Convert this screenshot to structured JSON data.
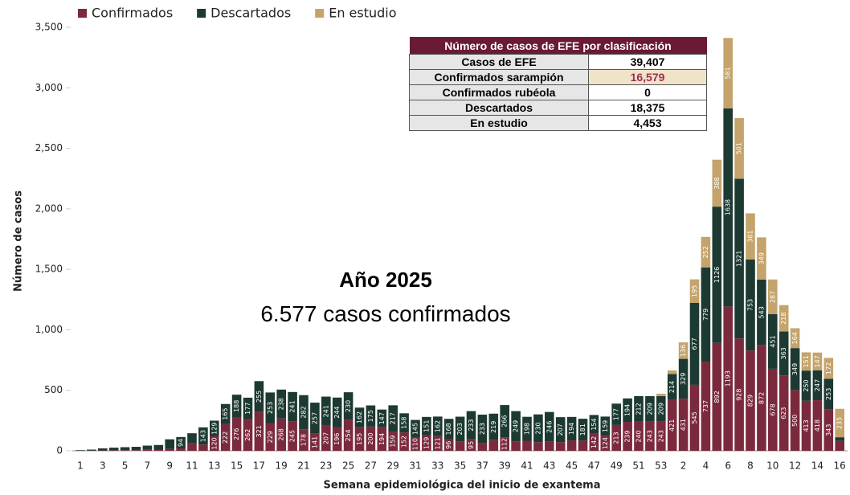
{
  "chart_data": {
    "type": "stacked_bar",
    "xlabel": "Semana epidemiológica del inicio de exantema",
    "ylabel": "Número de casos",
    "ylim": [
      0,
      3500
    ],
    "yticks": [
      0,
      500,
      {
        "value": 1000,
        "label": "1,000"
      },
      {
        "value": 1500,
        "label": "1,500"
      },
      {
        "value": 2000,
        "label": "2,000"
      },
      {
        "value": 2500,
        "label": "2,500"
      },
      {
        "value": 3000,
        "label": "3,000"
      },
      {
        "value": 3500,
        "label": "3,500"
      }
    ],
    "annotations": [
      "Año 2025",
      "6.577 casos confirmados"
    ],
    "categories": [
      "1",
      null,
      "3",
      null,
      "5",
      null,
      "7",
      null,
      "9",
      null,
      "11",
      null,
      "13",
      null,
      "15",
      null,
      "17",
      null,
      "19",
      null,
      "21",
      null,
      "23",
      null,
      "25",
      null,
      "27",
      null,
      "29",
      null,
      "31",
      null,
      "33",
      null,
      "35",
      null,
      "37",
      null,
      "39",
      null,
      "41",
      null,
      "43",
      null,
      "45",
      null,
      "47",
      null,
      "49",
      null,
      "51",
      null,
      "53",
      null,
      "2",
      null,
      "4",
      null,
      "6",
      null,
      "8",
      null,
      "10",
      null,
      "12",
      null,
      "14",
      null,
      "16"
    ],
    "series": [
      {
        "name": "Confirmados",
        "color": "#7b2a3e",
        "values": [
          0,
          2,
          3,
          4,
          5,
          5,
          8,
          10,
          17,
          20,
          61,
          51,
          120,
          222,
          276,
          262,
          321,
          229,
          268,
          245,
          178,
          141,
          207,
          196,
          254,
          195,
          200,
          194,
          159,
          152,
          110,
          129,
          121,
          96,
          79,
          95,
          66,
          88,
          112,
          79,
          83,
          71,
          75,
          71,
          86,
          84,
          142,
          124,
          213,
          239,
          240,
          243,
          243,
          421,
          431,
          545,
          737,
          892,
          1193,
          928,
          829,
          872,
          678,
          623,
          500,
          413,
          418,
          343,
          82
        ]
      },
      {
        "name": "Descartados",
        "color": "#1d3a32",
        "values": [
          5,
          8,
          17,
          22,
          25,
          28,
          35,
          38,
          78,
          94,
          84,
          143,
          129,
          165,
          188,
          177,
          255,
          253,
          238,
          241,
          282,
          257,
          241,
          244,
          230,
          162,
          175,
          147,
          217,
          158,
          145,
          151,
          162,
          168,
          203,
          233,
          233,
          219,
          266,
          249,
          198,
          230,
          246,
          207,
          194,
          181,
          154,
          159,
          177,
          194,
          212,
          209,
          209,
          214,
          329,
          677,
          779,
          1126,
          1638,
          1321,
          753,
          543,
          451,
          363,
          349,
          250,
          247,
          253,
          30
        ]
      },
      {
        "name": "En estudio",
        "color": "#c4a46c",
        "values": [
          0,
          0,
          0,
          0,
          0,
          0,
          0,
          0,
          0,
          0,
          0,
          0,
          0,
          0,
          0,
          0,
          0,
          0,
          0,
          0,
          0,
          0,
          0,
          0,
          0,
          0,
          0,
          0,
          0,
          0,
          0,
          0,
          0,
          0,
          0,
          0,
          0,
          0,
          0,
          0,
          0,
          0,
          0,
          0,
          0,
          0,
          0,
          0,
          0,
          0,
          0,
          0,
          20,
          29,
          136,
          195,
          252,
          388,
          581,
          501,
          381,
          349,
          287,
          218,
          164,
          151,
          147,
          172,
          235
        ]
      }
    ]
  },
  "table": {
    "title": "Número de casos de EFE por clasificación",
    "rows": [
      [
        "Casos de EFE",
        "39,407"
      ],
      [
        "Confirmados sarampión",
        "16,579"
      ],
      [
        "Confirmados rubéola",
        "0"
      ],
      [
        "Descartados",
        "18,375"
      ],
      [
        "En estudio",
        "4,453"
      ]
    ]
  }
}
